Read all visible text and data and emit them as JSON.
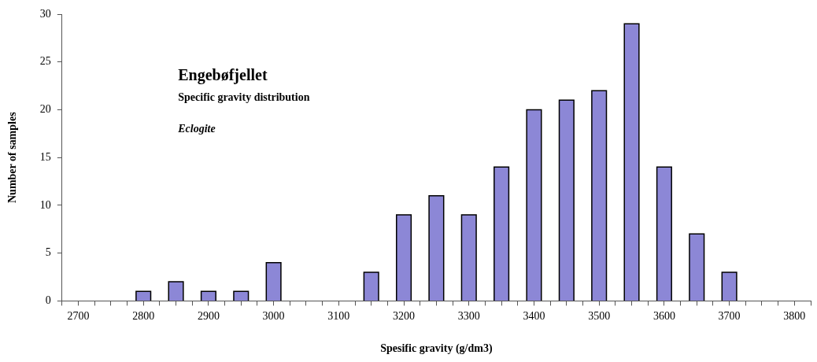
{
  "chart_data": {
    "type": "bar",
    "title": "Engebøfjellet",
    "subtitle": "Specific gravity distribution",
    "annotations": [
      "Eclogite"
    ],
    "xlabel": "Spesific gravity (g/dm3)",
    "ylabel": "Number of samples",
    "x": [
      2800,
      2850,
      2900,
      2950,
      3000,
      3150,
      3200,
      3250,
      3300,
      3350,
      3400,
      3450,
      3500,
      3550,
      3600,
      3650,
      3700
    ],
    "values": [
      1,
      2,
      1,
      1,
      4,
      3,
      9,
      11,
      9,
      14,
      20,
      21,
      22,
      29,
      14,
      7,
      3
    ],
    "color": "#8c87d6",
    "xlim": [
      2675,
      3825
    ],
    "xticks": [
      {
        "value": 2675,
        "label": null
      },
      2700,
      {
        "value": 2725,
        "label": null
      },
      {
        "value": 2750,
        "label": null
      },
      {
        "value": 2775,
        "label": null
      },
      2800,
      {
        "value": 2825,
        "label": null
      },
      {
        "value": 2850,
        "label": null
      },
      {
        "value": 2875,
        "label": null
      },
      2900,
      {
        "value": 2925,
        "label": null
      },
      {
        "value": 2950,
        "label": null
      },
      {
        "value": 2975,
        "label": null
      },
      3000,
      {
        "value": 3025,
        "label": null
      },
      {
        "value": 3050,
        "label": null
      },
      {
        "value": 3075,
        "label": null
      },
      3100,
      {
        "value": 3125,
        "label": null
      },
      {
        "value": 3150,
        "label": null
      },
      {
        "value": 3175,
        "label": null
      },
      3200,
      {
        "value": 3225,
        "label": null
      },
      {
        "value": 3250,
        "label": null
      },
      {
        "value": 3275,
        "label": null
      },
      3300,
      {
        "value": 3325,
        "label": null
      },
      {
        "value": 3350,
        "label": null
      },
      {
        "value": 3375,
        "label": null
      },
      3400,
      {
        "value": 3425,
        "label": null
      },
      {
        "value": 3450,
        "label": null
      },
      {
        "value": 3475,
        "label": null
      },
      3500,
      {
        "value": 3525,
        "label": null
      },
      {
        "value": 3550,
        "label": null
      },
      {
        "value": 3575,
        "label": null
      },
      3600,
      {
        "value": 3625,
        "label": null
      },
      {
        "value": 3650,
        "label": null
      },
      {
        "value": 3675,
        "label": null
      },
      3700,
      {
        "value": 3725,
        "label": null
      },
      {
        "value": 3750,
        "label": null
      },
      {
        "value": 3775,
        "label": null
      },
      3800,
      {
        "value": 3825,
        "label": null
      }
    ],
    "ylim": [
      0,
      30
    ],
    "yticks": [
      0,
      5,
      10,
      15,
      20,
      25,
      30
    ],
    "grid": false,
    "legend": false
  }
}
